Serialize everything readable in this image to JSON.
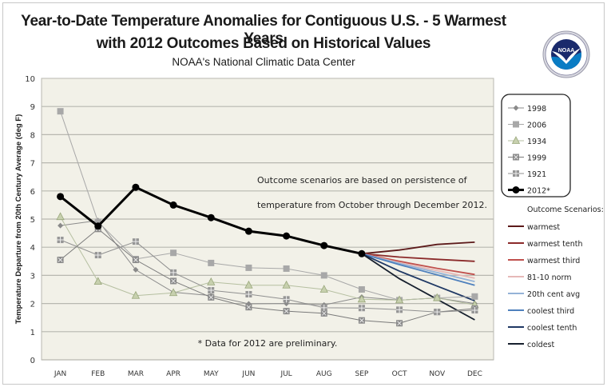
{
  "header": {
    "title_line1": "Year-to-Date Temperature Anomalies for Contiguous U.S. - 5 Warmest Years",
    "title_line2": "with 2012 Outcomes Based on Historical Values",
    "subtitle": "NOAA's National Climatic Data Center",
    "logo_icon": "noaa-logo-icon",
    "logo_text": "NOAA"
  },
  "chart_data": {
    "type": "line",
    "title": "Year-to-Date Temperature Anomalies for Contiguous U.S. - 5 Warmest Years with 2012 Outcomes Based on Historical Values",
    "subtitle": "NOAA's National Climatic Data Center",
    "xlabel": "",
    "ylabel": "Temperature Departure from 20th Century Average (deg F)",
    "ylim": [
      0,
      10
    ],
    "yticks": [
      "0",
      "1",
      "2",
      "3",
      "4",
      "5",
      "6",
      "7",
      "8",
      "9",
      "10"
    ],
    "categories": [
      "JAN",
      "FEB",
      "MAR",
      "APR",
      "MAY",
      "JUN",
      "JUL",
      "AUG",
      "SEP",
      "OCT",
      "NOV",
      "DEC"
    ],
    "grid": true,
    "legend_position": "right",
    "annotations": [
      "Outcome scenarios are based on persistence of",
      "temperature from October through December 2012.",
      "* Data for 2012 are preliminary."
    ],
    "legend_scenarios_title": "Outcome Scenarios:",
    "series": [
      {
        "name": "1998",
        "marker": "diamond",
        "color": "#8a8a8a",
        "values": [
          4.77,
          4.95,
          3.2,
          2.4,
          2.28,
          1.99,
          2.0,
          1.95,
          2.23,
          2.12,
          2.2,
          2.0
        ]
      },
      {
        "name": "2006",
        "marker": "square",
        "color": "#a8a8a8",
        "values": [
          8.83,
          4.9,
          3.58,
          3.8,
          3.44,
          3.27,
          3.24,
          3.0,
          2.5,
          2.12,
          2.2,
          2.25
        ]
      },
      {
        "name": "1934",
        "marker": "triangle",
        "color": "#b5bfa0",
        "values": [
          5.08,
          2.78,
          2.28,
          2.38,
          2.76,
          2.65,
          2.65,
          2.5,
          2.15,
          2.12,
          2.2,
          1.95
        ]
      },
      {
        "name": "1999",
        "marker": "xbox",
        "color": "#7a7a7a",
        "values": [
          3.55,
          4.65,
          3.55,
          2.8,
          2.22,
          1.87,
          1.73,
          1.65,
          1.4,
          1.3,
          1.7,
          1.82
        ]
      },
      {
        "name": "1921",
        "marker": "plusbox",
        "color": "#909090",
        "values": [
          4.26,
          3.72,
          4.2,
          3.1,
          2.47,
          2.33,
          2.15,
          1.85,
          1.84,
          1.78,
          1.7,
          1.76
        ]
      },
      {
        "name": "2012*",
        "marker": "circle",
        "color": "#000000",
        "bold": true,
        "values": [
          5.8,
          4.75,
          6.13,
          5.5,
          5.05,
          4.57,
          4.4,
          4.06,
          3.77,
          null,
          null,
          null
        ]
      }
    ],
    "scenarios": [
      {
        "name": "warmest",
        "color": "#5c1a1a",
        "values": [
          null,
          null,
          null,
          null,
          null,
          null,
          null,
          null,
          3.77,
          3.9,
          4.1,
          4.18
        ]
      },
      {
        "name": "warmest tenth",
        "color": "#8b2a2a",
        "values": [
          null,
          null,
          null,
          null,
          null,
          null,
          null,
          null,
          3.77,
          3.65,
          3.57,
          3.5
        ]
      },
      {
        "name": "warmest third",
        "color": "#c0504d",
        "values": [
          null,
          null,
          null,
          null,
          null,
          null,
          null,
          null,
          3.77,
          3.5,
          3.25,
          3.03
        ]
      },
      {
        "name": "81-10 norm",
        "color": "#e6b9b8",
        "values": [
          null,
          null,
          null,
          null,
          null,
          null,
          null,
          null,
          3.77,
          3.45,
          3.17,
          2.9
        ]
      },
      {
        "name": "20th cent avg",
        "color": "#95b3d7",
        "values": [
          null,
          null,
          null,
          null,
          null,
          null,
          null,
          null,
          3.77,
          3.42,
          3.1,
          2.78
        ]
      },
      {
        "name": "coolest third",
        "color": "#4f81bd",
        "values": [
          null,
          null,
          null,
          null,
          null,
          null,
          null,
          null,
          3.77,
          3.38,
          3.02,
          2.65
        ]
      },
      {
        "name": "coolest tenth",
        "color": "#1f3864",
        "values": [
          null,
          null,
          null,
          null,
          null,
          null,
          null,
          null,
          3.77,
          3.15,
          2.62,
          2.1
        ]
      },
      {
        "name": "coldest",
        "color": "#17202e",
        "values": [
          null,
          null,
          null,
          null,
          null,
          null,
          null,
          null,
          3.77,
          2.88,
          2.15,
          1.42
        ]
      }
    ]
  }
}
